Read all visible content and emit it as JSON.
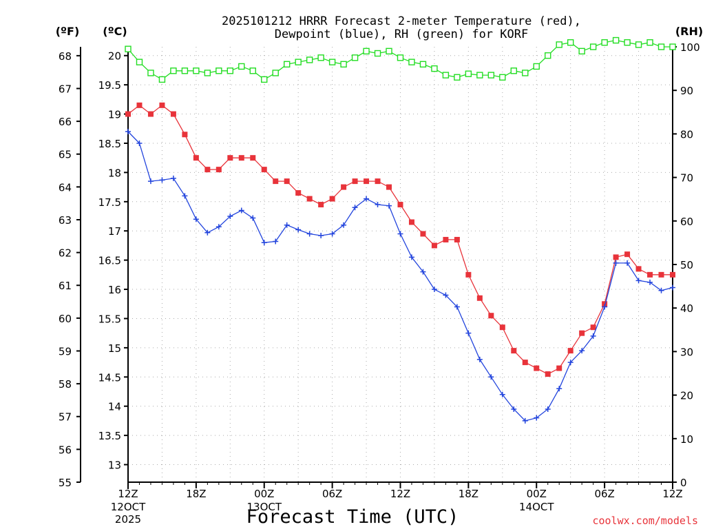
{
  "chart_data": {
    "type": "line",
    "title": "2025101212 HRRR Forecast 2-meter Temperature (red),",
    "subtitle": "Dewpoint (blue), RH (green) for KORF",
    "xlabel": "Forecast Time (UTC)",
    "watermark": "coolwx.com/models",
    "y_left_outer_label": "(ºF)",
    "y_left_inner_label": "(ºC)",
    "y_right_label": "(RH)",
    "x_hour_range": [
      0,
      48
    ],
    "ylim_c": [
      12.7,
      20.15
    ],
    "ylim_f": [
      55,
      68.27
    ],
    "ylim_rh": [
      0,
      100
    ],
    "x_ticks": [
      {
        "hour": 0,
        "label": "12Z",
        "sub": "12OCT",
        "sub2": "2025"
      },
      {
        "hour": 6,
        "label": "18Z",
        "sub": "",
        "sub2": ""
      },
      {
        "hour": 12,
        "label": "00Z",
        "sub": "13OCT",
        "sub2": ""
      },
      {
        "hour": 18,
        "label": "06Z",
        "sub": "",
        "sub2": ""
      },
      {
        "hour": 24,
        "label": "12Z",
        "sub": "",
        "sub2": ""
      },
      {
        "hour": 30,
        "label": "18Z",
        "sub": "",
        "sub2": ""
      },
      {
        "hour": 36,
        "label": "00Z",
        "sub": "14OCT",
        "sub2": ""
      },
      {
        "hour": 42,
        "label": "06Z",
        "sub": "",
        "sub2": ""
      },
      {
        "hour": 48,
        "label": "12Z",
        "sub": "",
        "sub2": ""
      }
    ],
    "c_ticks": [
      {
        "v": 13,
        "label": "13"
      },
      {
        "v": 13.5,
        "label": "13.5"
      },
      {
        "v": 14,
        "label": "14"
      },
      {
        "v": 14.5,
        "label": "14.5"
      },
      {
        "v": 15,
        "label": "15"
      },
      {
        "v": 15.5,
        "label": "15.5"
      },
      {
        "v": 16,
        "label": "16"
      },
      {
        "v": 16.5,
        "label": "16.5"
      },
      {
        "v": 17,
        "label": "17"
      },
      {
        "v": 17.5,
        "label": "17.5"
      },
      {
        "v": 18,
        "label": "18"
      },
      {
        "v": 18.5,
        "label": "18.5"
      },
      {
        "v": 19,
        "label": "19"
      },
      {
        "v": 19.5,
        "label": "19.5"
      },
      {
        "v": 20,
        "label": "20"
      }
    ],
    "f_ticks": [
      {
        "v": 55,
        "label": "55"
      },
      {
        "v": 56,
        "label": "56"
      },
      {
        "v": 57,
        "label": "57"
      },
      {
        "v": 58,
        "label": "58"
      },
      {
        "v": 59,
        "label": "59"
      },
      {
        "v": 60,
        "label": "60"
      },
      {
        "v": 61,
        "label": "61"
      },
      {
        "v": 62,
        "label": "62"
      },
      {
        "v": 63,
        "label": "63"
      },
      {
        "v": 64,
        "label": "64"
      },
      {
        "v": 65,
        "label": "65"
      },
      {
        "v": 66,
        "label": "66"
      },
      {
        "v": 67,
        "label": "67"
      },
      {
        "v": 68,
        "label": "68"
      }
    ],
    "rh_ticks": [
      {
        "v": 0,
        "label": "0"
      },
      {
        "v": 10,
        "label": "10"
      },
      {
        "v": 20,
        "label": "20"
      },
      {
        "v": 30,
        "label": "30"
      },
      {
        "v": 40,
        "label": "40"
      },
      {
        "v": 50,
        "label": "50"
      },
      {
        "v": 60,
        "label": "60"
      },
      {
        "v": 70,
        "label": "70"
      },
      {
        "v": 80,
        "label": "80"
      },
      {
        "v": 90,
        "label": "90"
      },
      {
        "v": 100,
        "label": "100"
      }
    ],
    "series": [
      {
        "name": "Temperature",
        "units": "C",
        "color": "#e8333a",
        "marker": "filled-square",
        "values": [
          19.0,
          19.15,
          19.0,
          19.15,
          19.0,
          18.65,
          18.25,
          18.05,
          18.05,
          18.25,
          18.25,
          18.25,
          18.05,
          17.85,
          17.85,
          17.65,
          17.55,
          17.45,
          17.55,
          17.75,
          17.85,
          17.85,
          17.85,
          17.75,
          17.45,
          17.15,
          16.95,
          16.75,
          16.85,
          16.85,
          16.25,
          15.85,
          15.55,
          15.35,
          14.95,
          14.75,
          14.65,
          14.55,
          14.65,
          14.95,
          15.25,
          15.35,
          15.75,
          16.55,
          16.6,
          16.35,
          16.25,
          16.25,
          16.25
        ]
      },
      {
        "name": "Dewpoint",
        "units": "C",
        "color": "#2244dd",
        "marker": "plus",
        "values": [
          18.7,
          18.5,
          17.85,
          17.87,
          17.9,
          17.6,
          17.2,
          16.97,
          17.07,
          17.25,
          17.35,
          17.22,
          16.8,
          16.82,
          17.1,
          17.02,
          16.95,
          16.92,
          16.95,
          17.1,
          17.4,
          17.55,
          17.45,
          17.43,
          16.95,
          16.55,
          16.3,
          16.0,
          15.9,
          15.7,
          15.25,
          14.8,
          14.5,
          14.2,
          13.95,
          13.75,
          13.8,
          13.95,
          14.3,
          14.75,
          14.95,
          15.2,
          15.7,
          16.45,
          16.45,
          16.15,
          16.12,
          15.98,
          16.03
        ]
      },
      {
        "name": "RH",
        "units": "%",
        "color": "#22dd22",
        "marker": "open-square",
        "values": [
          99.5,
          96.5,
          94,
          92.5,
          94.5,
          94.5,
          94.5,
          94,
          94.5,
          94.5,
          95.5,
          94.5,
          92.5,
          94,
          96,
          96.5,
          97,
          97.5,
          96.5,
          96,
          97.5,
          99,
          98.5,
          99,
          97.5,
          96.5,
          96,
          95,
          93.5,
          93,
          93.8,
          93.5,
          93.5,
          93,
          94.5,
          94,
          95.5,
          98,
          100.5,
          101,
          99,
          100,
          101,
          101.5,
          101,
          100.5,
          101,
          100,
          100
        ]
      }
    ]
  }
}
